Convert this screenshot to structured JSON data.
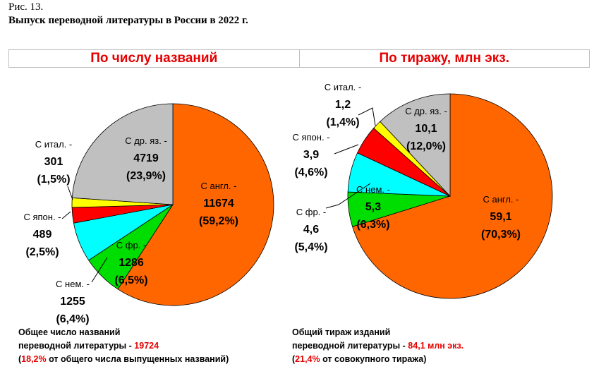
{
  "figure": {
    "number": "Рис. 13.",
    "title": "Выпуск переводной литературы в России в 2022 г."
  },
  "headers": {
    "left": "По числу названий",
    "right": "По тиражу, млн экз."
  },
  "chart_data": [
    {
      "type": "pie",
      "title": "По числу названий",
      "categories": [
        "англ.",
        "фр.",
        "нем.",
        "япон.",
        "итал.",
        "др. яз."
      ],
      "values": [
        11674,
        1286,
        1255,
        489,
        301,
        4719
      ],
      "percent_labels": [
        "(59,2%)",
        "(6,5%)",
        "(6,4%)",
        "(2,5%)",
        "(1,5%)",
        "(23,9%)"
      ],
      "value_labels": [
        "11674",
        "1286",
        "1255",
        "489",
        "301",
        "4719"
      ],
      "name_labels": [
        "С англ. -",
        "С фр. -",
        "С нем. -",
        "С япон. -",
        "С итал. -",
        "С др. яз. -"
      ],
      "colors": [
        "#ff6600",
        "#00dd00",
        "#00ffff",
        "#ff0000",
        "#ffff00",
        "#c0c0c0"
      ]
    },
    {
      "type": "pie",
      "title": "По тиражу, млн экз.",
      "categories": [
        "англ.",
        "фр.",
        "нем.",
        "япон.",
        "итал.",
        "др. яз."
      ],
      "values": [
        59.1,
        4.6,
        5.3,
        3.9,
        1.2,
        10.1
      ],
      "percent_labels": [
        "(70,3%)",
        "(5,4%)",
        "(6,3%)",
        "(4,6%)",
        "(1,4%)",
        "(12,0%)"
      ],
      "value_labels": [
        "59,1",
        "4,6",
        "5,3",
        "3,9",
        "1,2",
        "10,1"
      ],
      "name_labels": [
        "С англ. -",
        "С фр. -",
        "С нем. -",
        "С япон. -",
        "С итал. -",
        "С др. яз. -"
      ],
      "colors": [
        "#ff6600",
        "#00dd00",
        "#00ffff",
        "#ff0000",
        "#ffff00",
        "#c0c0c0"
      ]
    }
  ],
  "footnotes": {
    "left": {
      "line1": "Общее число названий",
      "line2_prefix": "переводной литературы - ",
      "line2_value": "19724",
      "line3_open": "(",
      "line3_value": "18,2%",
      "line3_suffix": " от общего числа выпущенных названий)"
    },
    "right": {
      "line1": "Общий тираж изданий",
      "line2_prefix": "переводной литературы - ",
      "line2_value": "84,1 млн экз.",
      "line3_open": "(",
      "line3_value": "21,4%",
      "line3_suffix": " от совокупного тиража)"
    }
  }
}
